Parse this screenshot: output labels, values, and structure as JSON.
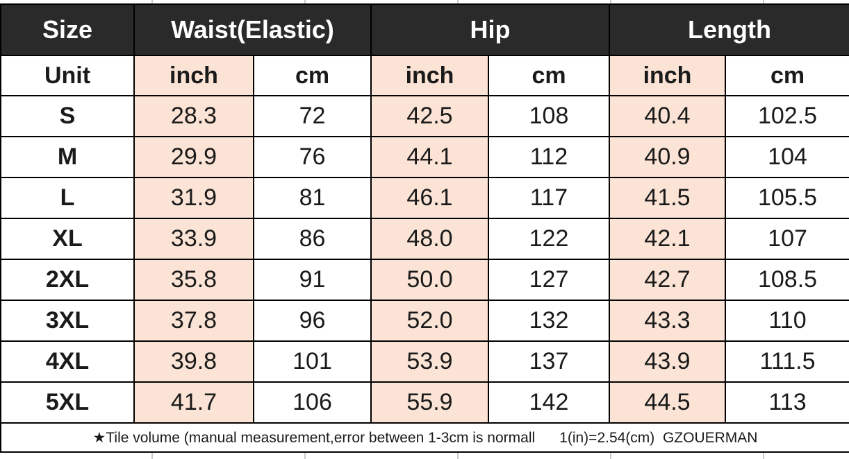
{
  "colors": {
    "header_bg": "#2a2a2a",
    "header_text": "#ffffff",
    "inch_highlight_bg": "#fbe3d5",
    "cell_bg": "#ffffff",
    "border": "#000000",
    "text": "#1a1a1a"
  },
  "chart_data": {
    "type": "table",
    "title": "Size chart",
    "header_groups": [
      {
        "label": "Size",
        "colspan": 1
      },
      {
        "label": "Waist(Elastic)",
        "colspan": 2
      },
      {
        "label": "Hip",
        "colspan": 2
      },
      {
        "label": "Length",
        "colspan": 2
      }
    ],
    "unit_row": [
      "Unit",
      "inch",
      "cm",
      "inch",
      "cm",
      "inch",
      "cm"
    ],
    "rows": [
      [
        "S",
        "28.3",
        "72",
        "42.5",
        "108",
        "40.4",
        "102.5"
      ],
      [
        "M",
        "29.9",
        "76",
        "44.1",
        "112",
        "40.9",
        "104"
      ],
      [
        "L",
        "31.9",
        "81",
        "46.1",
        "117",
        "41.5",
        "105.5"
      ],
      [
        "XL",
        "33.9",
        "86",
        "48.0",
        "122",
        "42.1",
        "107"
      ],
      [
        "2XL",
        "35.8",
        "91",
        "50.0",
        "127",
        "42.7",
        "108.5"
      ],
      [
        "3XL",
        "37.8",
        "96",
        "52.0",
        "132",
        "43.3",
        "110"
      ],
      [
        "4XL",
        "39.8",
        "101",
        "53.9",
        "137",
        "43.9",
        "111.5"
      ],
      [
        "5XL",
        "41.7",
        "106",
        "55.9",
        "142",
        "44.5",
        "113"
      ]
    ],
    "footer_note": "★Tile volume (manual measurement,error between 1-3cm is normall      1(in)=2.54(cm)  GZOUERMAN"
  }
}
